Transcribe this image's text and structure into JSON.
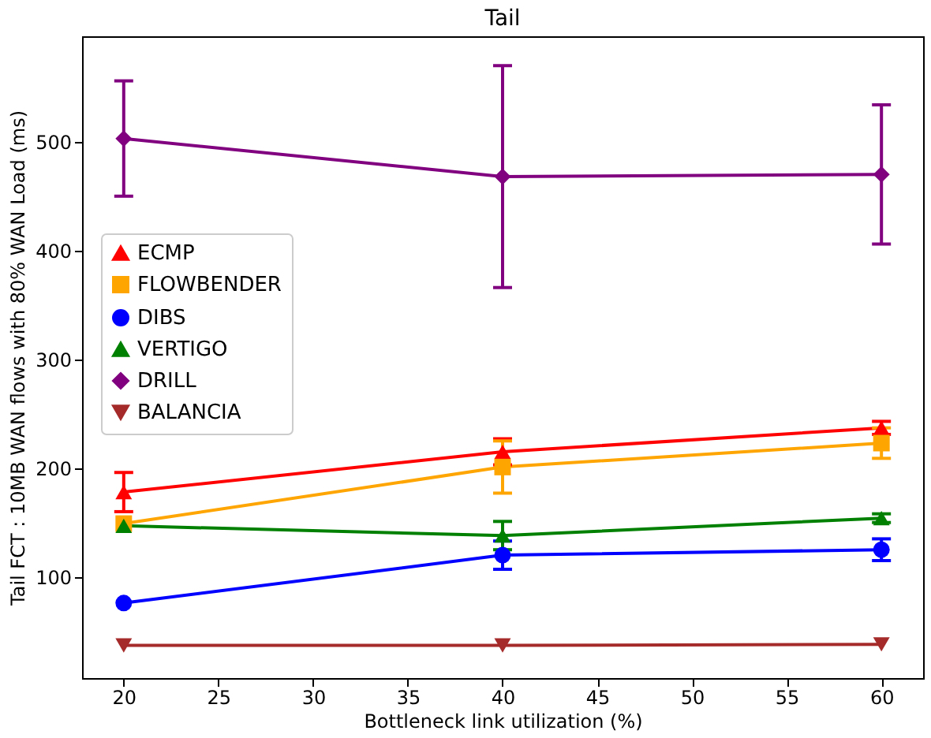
{
  "chart_data": {
    "type": "line",
    "title": "Tail",
    "xlabel": "Bottleneck link utilization (%)",
    "ylabel": "Tail FCT : 10MB WAN flows with 80% WAN Load (ms)",
    "x": [
      20,
      40,
      60
    ],
    "xlim": [
      17.8,
      62.2
    ],
    "xticks": [
      20,
      25,
      30,
      35,
      40,
      45,
      50,
      55,
      60
    ],
    "ylim": [
      7,
      597
    ],
    "yticks": [
      100,
      200,
      300,
      400,
      500
    ],
    "grid": false,
    "legend": "left",
    "line_style": "solid",
    "series": [
      {
        "name": "ECMP",
        "color": "#ff0000",
        "marker": "triangle",
        "values": [
          178,
          215,
          237
        ],
        "errors": [
          18,
          12,
          6
        ]
      },
      {
        "name": "FLOWBENDER",
        "color": "#ffa500",
        "marker": "square",
        "values": [
          149,
          201,
          223
        ],
        "errors": [
          null,
          24,
          14
        ]
      },
      {
        "name": "DIBS",
        "color": "#0000ff",
        "marker": "circle",
        "values": [
          76,
          120,
          125
        ],
        "errors": [
          null,
          13,
          10
        ]
      },
      {
        "name": "VERTIGO",
        "color": "#008000",
        "marker": "triangle",
        "values": [
          147,
          138,
          154
        ],
        "errors": [
          null,
          13,
          4
        ]
      },
      {
        "name": "DRILL",
        "color": "#800080",
        "marker": "diamond",
        "values": [
          503,
          468,
          470
        ],
        "errors": [
          53,
          102,
          64
        ]
      },
      {
        "name": "BALANCIA",
        "color": "#a52a2a",
        "marker": "triangle-down",
        "values": [
          37,
          37,
          38
        ]
      }
    ]
  }
}
